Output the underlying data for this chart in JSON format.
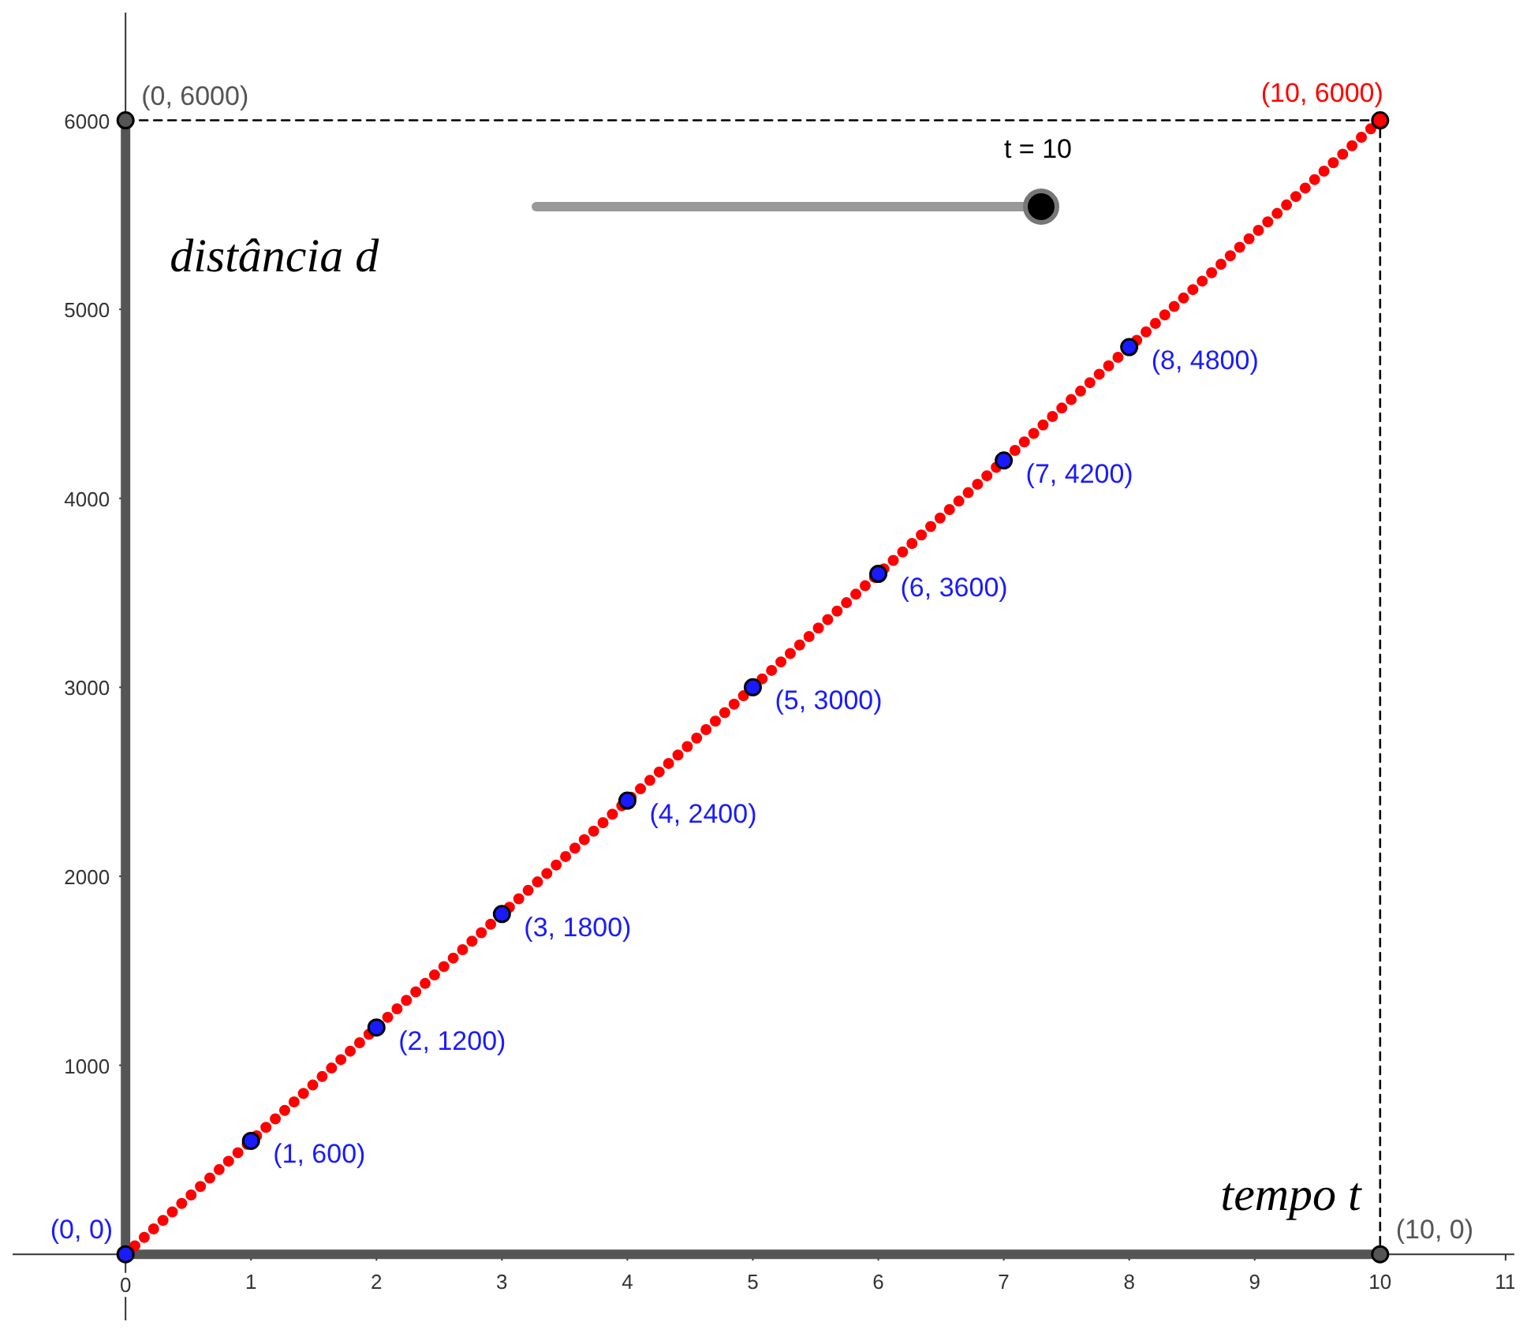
{
  "chart_data": {
    "type": "line",
    "xlabel": "tempo t",
    "ylabel": "distância d",
    "xlim": [
      -0.9,
      11.07
    ],
    "ylim": [
      -350,
      6570
    ],
    "xticks": [
      0,
      1,
      2,
      3,
      4,
      5,
      6,
      7,
      8,
      9,
      10,
      11
    ],
    "yticks": [
      1000,
      2000,
      3000,
      4000,
      5000,
      6000
    ],
    "grid": false,
    "annotations": [
      "t = 10"
    ],
    "series": [
      {
        "color": "#555555",
        "x": [
          0,
          10
        ],
        "values": [
          0,
          0
        ],
        "line_style": "solid",
        "marker": "none"
      },
      {
        "color": "#555555",
        "x": [
          0,
          0
        ],
        "values": [
          0,
          6000
        ],
        "line_style": "solid",
        "marker": "none"
      },
      {
        "color": "#000000",
        "x": [
          0,
          10,
          10
        ],
        "values": [
          6000,
          6000,
          0
        ],
        "line_style": "dashed",
        "marker": "none"
      },
      {
        "color": "#ff0000",
        "x": [
          0,
          10
        ],
        "values": [
          0,
          6000
        ],
        "line_style": "dotted",
        "marker": "none"
      },
      {
        "type": "scatter",
        "marker": "circle",
        "color": "#1a1aff",
        "x": [
          0,
          1,
          2,
          3,
          4,
          5,
          6,
          7,
          8
        ],
        "values": [
          0,
          600,
          1200,
          1800,
          2400,
          3000,
          3600,
          4200,
          4800
        ],
        "value_labels": [
          "(0, 0)",
          "(1, 600)",
          "(2, 1200)",
          "(3, 1800)",
          "(4, 2400)",
          "(5, 3000)",
          "(6, 3600)",
          "(7, 4200)",
          "(8, 4800)"
        ]
      },
      {
        "type": "scatter",
        "marker": "circle",
        "color": "#555555",
        "x": [
          0,
          10
        ],
        "values": [
          6000,
          0
        ],
        "value_labels": [
          "(0, 6000)",
          "(10, 0)"
        ]
      },
      {
        "type": "scatter",
        "marker": "circle",
        "color": "#ff0000",
        "x": [
          10
        ],
        "values": [
          6000
        ],
        "value_labels": [
          "(10, 6000)"
        ]
      }
    ]
  }
}
